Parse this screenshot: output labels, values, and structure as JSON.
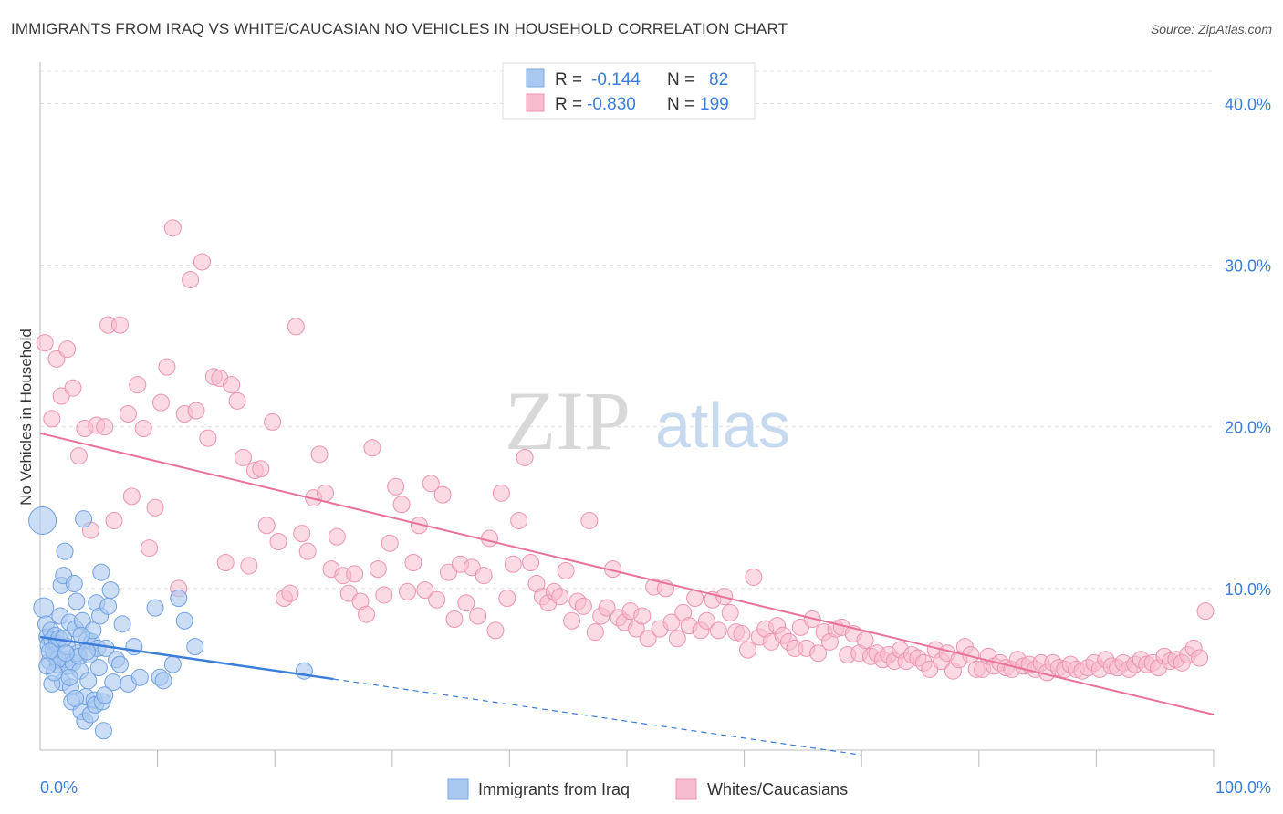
{
  "title": "IMMIGRANTS FROM IRAQ VS WHITE/CAUCASIAN NO VEHICLES IN HOUSEHOLD CORRELATION CHART",
  "source": "Source: ZipAtlas.com",
  "watermark": {
    "zip": "ZIP",
    "atlas": "atlas"
  },
  "colors": {
    "blue": "#3b7dd8",
    "pink": "#e8729a",
    "blue_fill": "#a9c8f0",
    "pink_fill": "#f7bccd"
  },
  "legend": {
    "rows": [
      {
        "r_label": "R =",
        "r_value": "-0.144",
        "n_label": "N =",
        "n_value": "82",
        "color": "blue"
      },
      {
        "r_label": "R =",
        "r_value": "-0.830",
        "n_label": "N =",
        "n_value": "199",
        "color": "pink"
      }
    ]
  },
  "bottom_legend": [
    "Immigrants from Iraq",
    "Whites/Caucasians"
  ],
  "chart_data": {
    "type": "scatter",
    "title": "IMMIGRANTS FROM IRAQ VS WHITE/CAUCASIAN NO VEHICLES IN HOUSEHOLD CORRELATION CHART",
    "xlabel": "",
    "ylabel": "No Vehicles in Household",
    "xlim": [
      0,
      100
    ],
    "ylim": [
      0,
      42
    ],
    "x_tick_labels": [
      "0.0%",
      "100.0%"
    ],
    "y_tick_labels": [
      "10.0%",
      "20.0%",
      "30.0%",
      "40.0%"
    ],
    "y_tick_values": [
      10,
      20,
      30,
      40
    ],
    "grid": true,
    "series": [
      {
        "name": "Immigrants from Iraq",
        "color": "blue",
        "trend": {
          "x0": 0,
          "y0": 7.0,
          "x1": 25,
          "y1": 4.4,
          "dashed_to_x": 70,
          "dashed_to_y": -0.3
        },
        "points": [
          [
            0.2,
            14.2
          ],
          [
            0.3,
            8.8
          ],
          [
            0.5,
            7.8
          ],
          [
            0.6,
            7.0
          ],
          [
            0.7,
            6.5
          ],
          [
            0.8,
            5.5
          ],
          [
            0.9,
            7.4
          ],
          [
            1.0,
            6.8
          ],
          [
            1.1,
            6.2
          ],
          [
            1.2,
            5.9
          ],
          [
            1.3,
            7.1
          ],
          [
            1.4,
            6.6
          ],
          [
            1.5,
            5.3
          ],
          [
            1.6,
            6.9
          ],
          [
            1.7,
            8.3
          ],
          [
            1.8,
            10.2
          ],
          [
            1.9,
            4.2
          ],
          [
            2.0,
            10.8
          ],
          [
            2.1,
            12.3
          ],
          [
            2.2,
            5.6
          ],
          [
            2.3,
            6.4
          ],
          [
            2.4,
            5.2
          ],
          [
            2.5,
            7.9
          ],
          [
            2.6,
            3.9
          ],
          [
            2.7,
            3.0
          ],
          [
            2.8,
            5.4
          ],
          [
            2.9,
            10.3
          ],
          [
            3.0,
            7.5
          ],
          [
            3.1,
            9.2
          ],
          [
            3.2,
            6.0
          ],
          [
            3.3,
            5.8
          ],
          [
            3.4,
            4.9
          ],
          [
            3.5,
            2.4
          ],
          [
            3.6,
            8.0
          ],
          [
            3.7,
            14.3
          ],
          [
            3.8,
            1.8
          ],
          [
            3.9,
            3.3
          ],
          [
            4.0,
            6.8
          ],
          [
            4.1,
            4.3
          ],
          [
            4.2,
            5.9
          ],
          [
            4.3,
            2.2
          ],
          [
            4.4,
            6.7
          ],
          [
            4.5,
            7.4
          ],
          [
            4.6,
            3.1
          ],
          [
            4.7,
            2.8
          ],
          [
            4.8,
            9.1
          ],
          [
            4.9,
            6.3
          ],
          [
            5.0,
            5.1
          ],
          [
            5.1,
            8.3
          ],
          [
            5.2,
            11.0
          ],
          [
            5.3,
            3.0
          ],
          [
            5.4,
            1.2
          ],
          [
            5.6,
            6.3
          ],
          [
            5.8,
            8.9
          ],
          [
            6.0,
            9.9
          ],
          [
            6.2,
            4.2
          ],
          [
            6.5,
            5.6
          ],
          [
            7.0,
            7.8
          ],
          [
            7.5,
            4.1
          ],
          [
            8.0,
            6.4
          ],
          [
            8.5,
            4.5
          ],
          [
            9.8,
            8.8
          ],
          [
            10.2,
            4.5
          ],
          [
            10.5,
            4.3
          ],
          [
            11.3,
            5.3
          ],
          [
            11.8,
            9.4
          ],
          [
            12.3,
            8.0
          ],
          [
            13.2,
            6.4
          ],
          [
            22.5,
            4.9
          ],
          [
            1.0,
            4.1
          ],
          [
            2.0,
            6.9
          ],
          [
            3.0,
            3.2
          ],
          [
            1.5,
            5.6
          ],
          [
            0.8,
            6.1
          ],
          [
            4.0,
            6.1
          ],
          [
            2.5,
            4.5
          ],
          [
            3.5,
            7.1
          ],
          [
            1.2,
            4.8
          ],
          [
            6.8,
            5.3
          ],
          [
            0.6,
            5.2
          ],
          [
            5.5,
            3.4
          ],
          [
            2.2,
            6.0
          ]
        ]
      },
      {
        "name": "Whites/Caucasians",
        "color": "pink",
        "trend": {
          "x0": 0,
          "y0": 19.6,
          "x1": 100,
          "y1": 2.2
        },
        "points": [
          [
            0.4,
            25.2
          ],
          [
            1.0,
            20.5
          ],
          [
            1.4,
            24.2
          ],
          [
            1.8,
            21.9
          ],
          [
            2.3,
            24.8
          ],
          [
            2.8,
            22.4
          ],
          [
            3.3,
            18.2
          ],
          [
            3.8,
            19.9
          ],
          [
            4.3,
            13.6
          ],
          [
            4.8,
            20.1
          ],
          [
            5.5,
            20.0
          ],
          [
            5.8,
            26.3
          ],
          [
            6.3,
            14.2
          ],
          [
            6.8,
            26.3
          ],
          [
            7.5,
            20.8
          ],
          [
            7.8,
            15.7
          ],
          [
            8.3,
            22.6
          ],
          [
            8.8,
            19.9
          ],
          [
            9.3,
            12.5
          ],
          [
            9.8,
            15.0
          ],
          [
            10.3,
            21.5
          ],
          [
            10.8,
            23.7
          ],
          [
            11.3,
            32.3
          ],
          [
            11.8,
            10.0
          ],
          [
            12.3,
            20.8
          ],
          [
            12.8,
            29.1
          ],
          [
            13.3,
            21.0
          ],
          [
            13.8,
            30.2
          ],
          [
            14.3,
            19.3
          ],
          [
            14.8,
            23.1
          ],
          [
            15.3,
            23.0
          ],
          [
            15.8,
            11.6
          ],
          [
            16.3,
            22.6
          ],
          [
            16.8,
            21.6
          ],
          [
            17.3,
            18.1
          ],
          [
            17.8,
            11.4
          ],
          [
            18.3,
            17.3
          ],
          [
            18.8,
            17.4
          ],
          [
            19.3,
            13.9
          ],
          [
            19.8,
            20.3
          ],
          [
            20.3,
            12.9
          ],
          [
            20.8,
            9.4
          ],
          [
            21.3,
            9.7
          ],
          [
            21.8,
            26.2
          ],
          [
            22.3,
            13.4
          ],
          [
            22.8,
            12.3
          ],
          [
            23.3,
            15.6
          ],
          [
            23.8,
            18.3
          ],
          [
            24.3,
            15.9
          ],
          [
            24.8,
            11.2
          ],
          [
            25.3,
            13.2
          ],
          [
            25.8,
            10.8
          ],
          [
            26.3,
            9.7
          ],
          [
            26.8,
            10.9
          ],
          [
            27.3,
            9.2
          ],
          [
            27.8,
            8.4
          ],
          [
            28.3,
            18.7
          ],
          [
            28.8,
            11.2
          ],
          [
            29.3,
            9.6
          ],
          [
            29.8,
            12.8
          ],
          [
            30.3,
            16.3
          ],
          [
            30.8,
            15.2
          ],
          [
            31.3,
            9.8
          ],
          [
            31.8,
            11.6
          ],
          [
            32.3,
            13.9
          ],
          [
            32.8,
            9.9
          ],
          [
            33.3,
            16.5
          ],
          [
            33.8,
            9.3
          ],
          [
            34.3,
            15.8
          ],
          [
            34.8,
            11.0
          ],
          [
            35.3,
            8.1
          ],
          [
            35.8,
            11.5
          ],
          [
            36.3,
            9.1
          ],
          [
            36.8,
            11.3
          ],
          [
            37.3,
            8.3
          ],
          [
            37.8,
            10.8
          ],
          [
            38.3,
            13.1
          ],
          [
            38.8,
            7.4
          ],
          [
            39.3,
            15.9
          ],
          [
            39.8,
            9.4
          ],
          [
            40.3,
            11.5
          ],
          [
            40.8,
            14.2
          ],
          [
            41.3,
            18.1
          ],
          [
            41.8,
            11.6
          ],
          [
            42.3,
            10.3
          ],
          [
            42.8,
            9.5
          ],
          [
            43.3,
            9.1
          ],
          [
            43.8,
            9.8
          ],
          [
            44.3,
            9.5
          ],
          [
            44.8,
            11.1
          ],
          [
            45.3,
            8.0
          ],
          [
            45.8,
            9.2
          ],
          [
            46.3,
            8.9
          ],
          [
            46.8,
            14.2
          ],
          [
            47.3,
            7.3
          ],
          [
            47.8,
            8.3
          ],
          [
            48.3,
            8.8
          ],
          [
            48.8,
            11.2
          ],
          [
            49.3,
            8.2
          ],
          [
            49.8,
            7.9
          ],
          [
            50.3,
            8.6
          ],
          [
            50.8,
            7.5
          ],
          [
            51.3,
            8.3
          ],
          [
            51.8,
            6.9
          ],
          [
            52.3,
            10.1
          ],
          [
            52.8,
            7.5
          ],
          [
            53.3,
            10.0
          ],
          [
            53.8,
            7.9
          ],
          [
            54.3,
            6.9
          ],
          [
            54.8,
            8.5
          ],
          [
            55.3,
            7.7
          ],
          [
            55.8,
            9.4
          ],
          [
            56.3,
            7.4
          ],
          [
            56.8,
            8.0
          ],
          [
            57.3,
            9.3
          ],
          [
            57.8,
            7.4
          ],
          [
            58.3,
            9.5
          ],
          [
            58.8,
            8.5
          ],
          [
            59.3,
            7.3
          ],
          [
            59.8,
            7.2
          ],
          [
            60.3,
            6.2
          ],
          [
            60.8,
            10.7
          ],
          [
            61.3,
            7.0
          ],
          [
            61.8,
            7.5
          ],
          [
            62.3,
            6.7
          ],
          [
            62.8,
            7.7
          ],
          [
            63.3,
            7.1
          ],
          [
            63.8,
            6.7
          ],
          [
            64.3,
            6.3
          ],
          [
            64.8,
            7.6
          ],
          [
            65.3,
            6.3
          ],
          [
            65.8,
            8.1
          ],
          [
            66.3,
            6.0
          ],
          [
            66.8,
            7.3
          ],
          [
            67.3,
            6.7
          ],
          [
            67.8,
            7.5
          ],
          [
            68.3,
            7.6
          ],
          [
            68.8,
            5.9
          ],
          [
            69.3,
            7.2
          ],
          [
            69.8,
            6.0
          ],
          [
            70.3,
            6.8
          ],
          [
            70.8,
            5.8
          ],
          [
            71.3,
            6.0
          ],
          [
            71.8,
            5.6
          ],
          [
            72.3,
            5.9
          ],
          [
            72.8,
            5.5
          ],
          [
            73.3,
            6.2
          ],
          [
            73.8,
            5.5
          ],
          [
            74.3,
            5.9
          ],
          [
            74.8,
            5.7
          ],
          [
            75.3,
            5.4
          ],
          [
            75.8,
            5.0
          ],
          [
            76.3,
            6.2
          ],
          [
            76.8,
            5.5
          ],
          [
            77.3,
            6.0
          ],
          [
            77.8,
            4.9
          ],
          [
            78.3,
            5.6
          ],
          [
            78.8,
            6.4
          ],
          [
            79.3,
            5.9
          ],
          [
            79.8,
            5.0
          ],
          [
            80.3,
            5.0
          ],
          [
            80.8,
            5.8
          ],
          [
            81.3,
            5.2
          ],
          [
            81.8,
            5.4
          ],
          [
            82.3,
            5.1
          ],
          [
            82.8,
            5.0
          ],
          [
            83.3,
            5.6
          ],
          [
            83.8,
            5.2
          ],
          [
            84.3,
            5.3
          ],
          [
            84.8,
            5.0
          ],
          [
            85.3,
            5.4
          ],
          [
            85.8,
            4.8
          ],
          [
            86.3,
            5.4
          ],
          [
            86.8,
            5.1
          ],
          [
            87.3,
            5.0
          ],
          [
            87.8,
            5.3
          ],
          [
            88.3,
            5.0
          ],
          [
            88.8,
            4.9
          ],
          [
            89.3,
            5.1
          ],
          [
            89.8,
            5.4
          ],
          [
            90.3,
            5.0
          ],
          [
            90.8,
            5.6
          ],
          [
            91.3,
            5.2
          ],
          [
            91.8,
            5.1
          ],
          [
            92.3,
            5.4
          ],
          [
            92.8,
            5.0
          ],
          [
            93.3,
            5.3
          ],
          [
            93.8,
            5.6
          ],
          [
            94.3,
            5.3
          ],
          [
            94.8,
            5.4
          ],
          [
            95.3,
            5.1
          ],
          [
            95.8,
            5.8
          ],
          [
            96.3,
            5.5
          ],
          [
            96.8,
            5.6
          ],
          [
            97.3,
            5.4
          ],
          [
            97.8,
            5.9
          ],
          [
            98.3,
            6.3
          ],
          [
            98.8,
            5.7
          ],
          [
            99.3,
            8.6
          ]
        ]
      }
    ]
  }
}
